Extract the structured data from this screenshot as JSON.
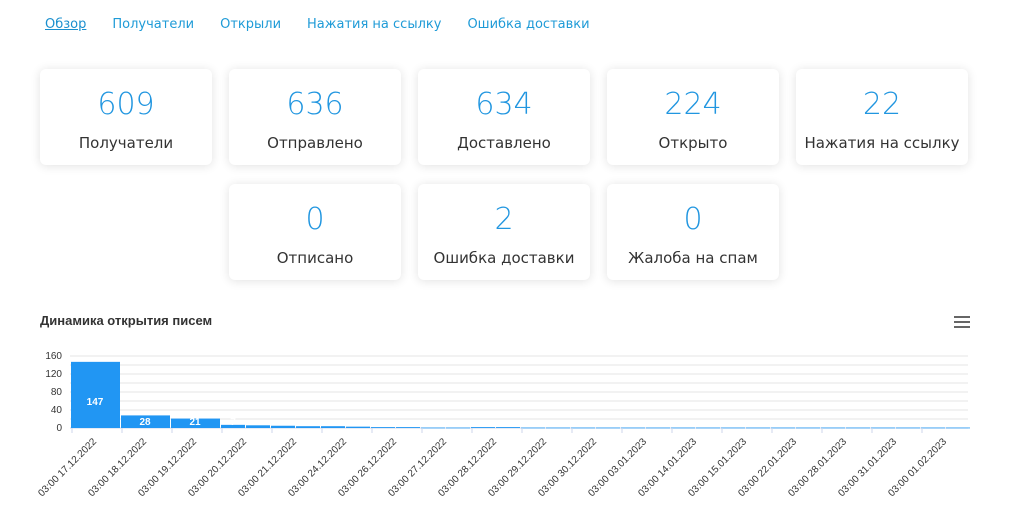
{
  "tabs": [
    {
      "label": "Обзор",
      "active": true
    },
    {
      "label": "Получатели",
      "active": false
    },
    {
      "label": "Открыли",
      "active": false
    },
    {
      "label": "Нажатия на ссылку",
      "active": false
    },
    {
      "label": "Ошибка доставки",
      "active": false
    }
  ],
  "stats": [
    {
      "value": "609",
      "label": "Получатели"
    },
    {
      "value": "636",
      "label": "Отправлено"
    },
    {
      "value": "634",
      "label": "Доставлено"
    },
    {
      "value": "224",
      "label": "Открыто"
    },
    {
      "value": "22",
      "label": "Нажатия на ссылку"
    },
    {
      "value": "0",
      "label": "Отписано"
    },
    {
      "value": "2",
      "label": "Ошибка доставки"
    },
    {
      "value": "0",
      "label": "Жалоба на спам"
    }
  ],
  "chart": {
    "title": "Динамика открытия писем",
    "menu_icon": "hamburger-menu-icon"
  },
  "chart_data": {
    "type": "bar",
    "title": "Динамика открытия писем",
    "ylim": [
      0,
      160
    ],
    "yticks": [
      0,
      20,
      40,
      60,
      80,
      100,
      120,
      140,
      160
    ],
    "ytick_labels": [
      "0",
      "40",
      "80",
      "120",
      "160"
    ],
    "grid": true,
    "color": "#2196f3",
    "categories": [
      "03:00 17.12.2022",
      "03:00 18.12.2022",
      "03:00 19.12.2022",
      "03:00 20.12.2022",
      "03:00 21.12.2022",
      "03:00 24.12.2022",
      "03:00 26.12.2022",
      "03:00 27.12.2022",
      "03:00 28.12.2022",
      "03:00 29.12.2022",
      "03:00 30.12.2022",
      "03:00 03.01.2023",
      "03:00 14.01.2023",
      "03:00 15.01.2023",
      "03:00 22.01.2023",
      "03:00 28.01.2023",
      "03:00 31.01.2023",
      "03:00 01.02.2023"
    ],
    "values": [
      147,
      28,
      21,
      7,
      5,
      4,
      2,
      1,
      2,
      1,
      1,
      1,
      1,
      1,
      1,
      1,
      1,
      1
    ],
    "data_labels": [
      "147",
      "28",
      "21",
      "7",
      "",
      "",
      "",
      "",
      "",
      "",
      "",
      "",
      "",
      "",
      "",
      "",
      "",
      ""
    ]
  }
}
